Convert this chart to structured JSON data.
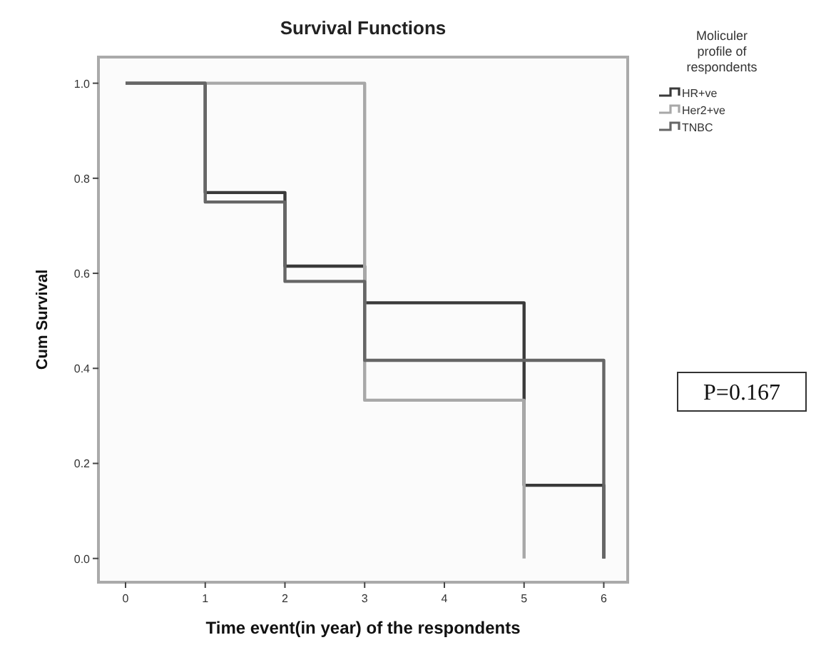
{
  "chart_data": {
    "type": "step",
    "title": "Survival Functions",
    "xlabel": "Time event(in year) of the respondents",
    "ylabel": "Cum Survival",
    "legend_title": "Moliculer profile of respondents",
    "legend": "top right",
    "xlim": [
      -0.34,
      6.3
    ],
    "ylim": [
      -0.05,
      1.055
    ],
    "xticks": [
      0,
      1,
      2,
      3,
      4,
      5,
      6
    ],
    "yticks": [
      {
        "value": 0,
        "label": "0.0"
      },
      0.2,
      0.4,
      0.6,
      0.8,
      {
        "value": 1,
        "label": "1.0"
      }
    ],
    "grid": false,
    "series": [
      {
        "name": "HR+ve",
        "color": "#3a3a3a",
        "x": [
          0,
          1,
          2,
          3,
          5,
          6
        ],
        "values": [
          1,
          0.77,
          0.615,
          0.538,
          0.154,
          0
        ]
      },
      {
        "name": "Her2+ve",
        "color": "#a8a8a8",
        "x": [
          0,
          3,
          5
        ],
        "values": [
          1,
          0.333,
          0
        ]
      },
      {
        "name": "TNBC",
        "color": "#666666",
        "x": [
          0,
          1,
          2,
          3,
          6
        ],
        "values": [
          1,
          0.75,
          0.583,
          0.417,
          0
        ]
      }
    ],
    "annotations": [
      "P=0.167"
    ]
  }
}
